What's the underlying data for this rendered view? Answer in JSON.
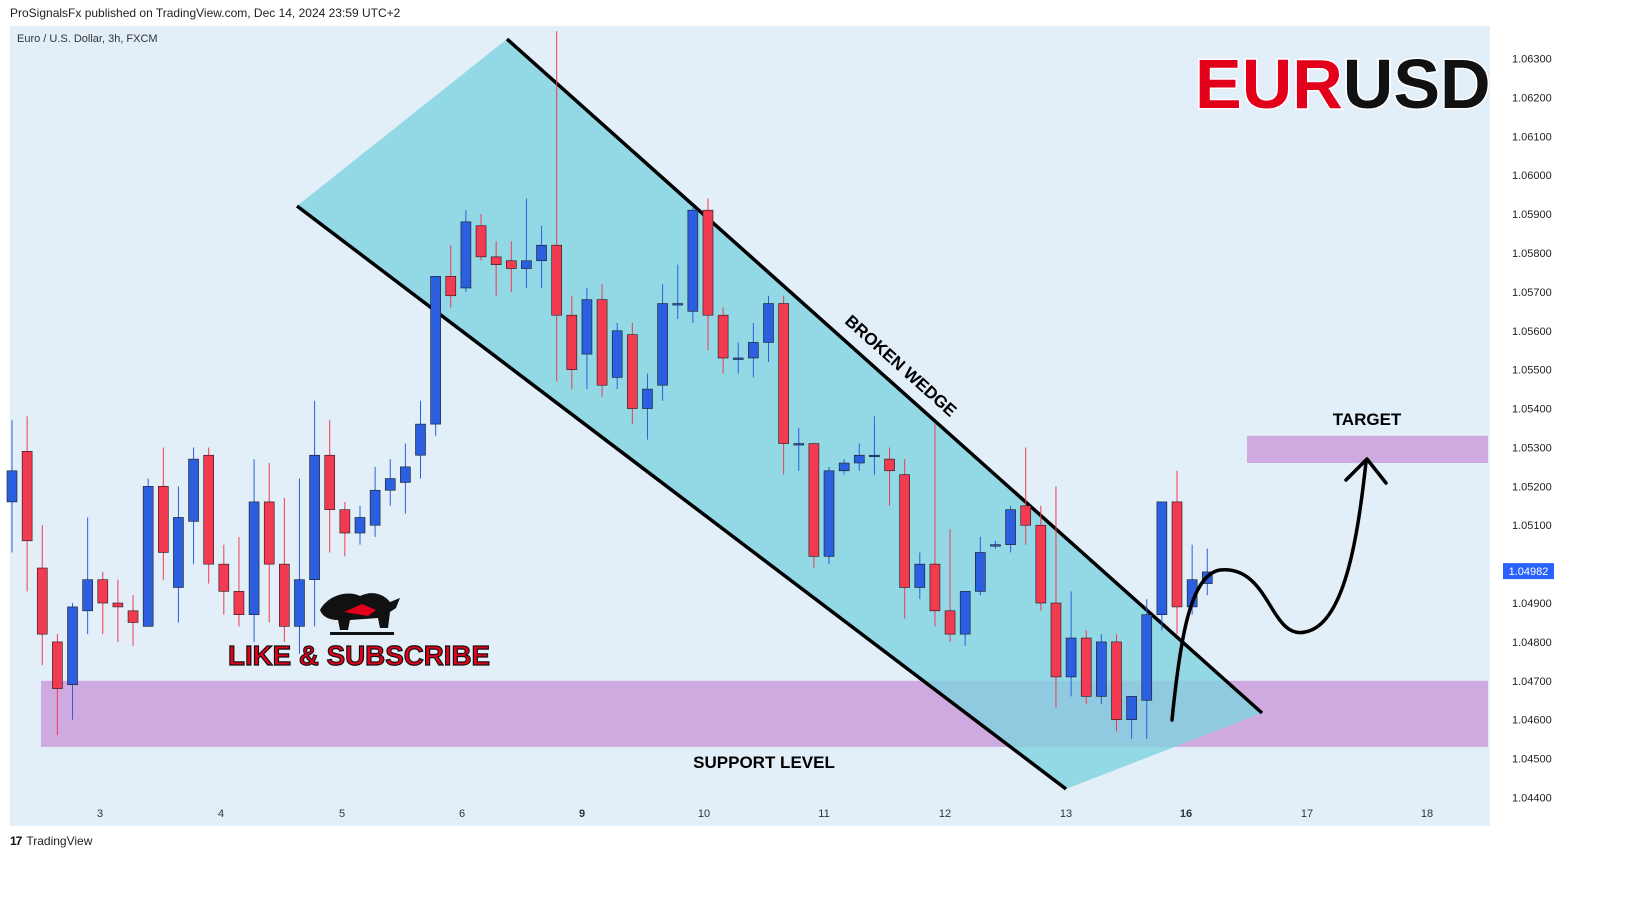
{
  "header": {
    "published_text": "ProSignalsFx published on TradingView.com, Dec 14, 2024 23:59 UTC+2",
    "symbol_line": "Euro / U.S. Dollar, 3h, FXCM"
  },
  "footer": {
    "brand": "TradingView",
    "logo_glyph": "17"
  },
  "colors": {
    "bull": "#2b5fe0",
    "bear": "#f23a50",
    "channel": "#7fd2e0",
    "zone": "#cfaae0",
    "price_tag": "#2962ff",
    "title_red": "#e3001b",
    "title_black": "#111111"
  },
  "chart_data": {
    "type": "candlestick",
    "instrument": "Euro / U.S. Dollar",
    "timeframe": "3h",
    "source": "FXCM",
    "title_left": "EUR",
    "title_right": "USD",
    "x_tick_labels": [
      "3",
      "4",
      "5",
      "6",
      "9",
      "10",
      "11",
      "12",
      "13",
      "16",
      "17",
      "18"
    ],
    "y_ticks": [
      1.063,
      1.062,
      1.061,
      1.06,
      1.059,
      1.058,
      1.057,
      1.056,
      1.055,
      1.054,
      1.053,
      1.052,
      1.051,
      1.049,
      1.048,
      1.047,
      1.046,
      1.045,
      1.044
    ],
    "y_tick_labels": [
      "1.06300",
      "1.06200",
      "1.06100",
      "1.06000",
      "1.05900",
      "1.05800",
      "1.05700",
      "1.05600",
      "1.05500",
      "1.05400",
      "1.05300",
      "1.05200",
      "1.05100",
      "1.04900",
      "1.04800",
      "1.04700",
      "1.04600",
      "1.04500",
      "1.04400"
    ],
    "ylim": [
      1.0436,
      1.0639
    ],
    "last_price": "1.04982",
    "candles": [
      [
        1.0516,
        1.0537,
        1.0524,
        1.0503
      ],
      [
        1.0529,
        1.0538,
        1.0506,
        1.0493
      ],
      [
        1.0499,
        1.051,
        1.0482,
        1.0474
      ],
      [
        1.048,
        1.0482,
        1.0468,
        1.0456
      ],
      [
        1.0469,
        1.049,
        1.0489,
        1.046
      ],
      [
        1.0488,
        1.0512,
        1.0496,
        1.0482
      ],
      [
        1.0496,
        1.0498,
        1.049,
        1.0482
      ],
      [
        1.049,
        1.0496,
        1.0489,
        1.048
      ],
      [
        1.0488,
        1.0492,
        1.0485,
        1.0479
      ],
      [
        1.0484,
        1.0522,
        1.052,
        1.0484
      ],
      [
        1.052,
        1.053,
        1.0503,
        1.0496
      ],
      [
        1.0494,
        1.052,
        1.0512,
        1.0485
      ],
      [
        1.0511,
        1.053,
        1.0527,
        1.05
      ],
      [
        1.0528,
        1.053,
        1.05,
        1.0495
      ],
      [
        1.05,
        1.0505,
        1.0493,
        1.0487
      ],
      [
        1.0493,
        1.0507,
        1.0487,
        1.0484
      ],
      [
        1.0487,
        1.0527,
        1.0516,
        1.048
      ],
      [
        1.0516,
        1.0526,
        1.05,
        1.0485
      ],
      [
        1.05,
        1.0517,
        1.0484,
        1.048
      ],
      [
        1.0484,
        1.0522,
        1.0496,
        1.0477
      ],
      [
        1.0496,
        1.0542,
        1.0528,
        1.0484
      ],
      [
        1.0528,
        1.0537,
        1.0514,
        1.0503
      ],
      [
        1.0514,
        1.0516,
        1.0508,
        1.0502
      ],
      [
        1.0508,
        1.0515,
        1.0512,
        1.0505
      ],
      [
        1.051,
        1.0525,
        1.0519,
        1.0507
      ],
      [
        1.0519,
        1.0527,
        1.0522,
        1.0515
      ],
      [
        1.0521,
        1.0531,
        1.0525,
        1.0513
      ],
      [
        1.0528,
        1.0542,
        1.0536,
        1.0522
      ],
      [
        1.0536,
        1.0539,
        1.0574,
        1.0533
      ],
      [
        1.0574,
        1.0582,
        1.0569,
        1.0566
      ],
      [
        1.0571,
        1.0591,
        1.0588,
        1.057
      ],
      [
        1.0587,
        1.059,
        1.0579,
        1.0578
      ],
      [
        1.0579,
        1.0583,
        1.0577,
        1.0569
      ],
      [
        1.0578,
        1.0583,
        1.0576,
        1.057
      ],
      [
        1.0576,
        1.0594,
        1.0578,
        1.0571
      ],
      [
        1.0578,
        1.0587,
        1.0582,
        1.0571
      ],
      [
        1.0582,
        1.0637,
        1.0564,
        1.0547
      ],
      [
        1.0564,
        1.0569,
        1.055,
        1.0545
      ],
      [
        1.0554,
        1.0571,
        1.0568,
        1.0545
      ],
      [
        1.0568,
        1.0572,
        1.0546,
        1.0543
      ],
      [
        1.0548,
        1.0562,
        1.056,
        1.0545
      ],
      [
        1.0559,
        1.0562,
        1.054,
        1.0536
      ],
      [
        1.054,
        1.0549,
        1.0545,
        1.0532
      ],
      [
        1.0546,
        1.0572,
        1.0567,
        1.0542
      ],
      [
        1.0567,
        1.0577,
        1.0567,
        1.0563
      ],
      [
        1.0565,
        1.0592,
        1.0591,
        1.0562
      ],
      [
        1.0591,
        1.0594,
        1.0564,
        1.0555
      ],
      [
        1.0564,
        1.0566,
        1.0553,
        1.0549
      ],
      [
        1.0553,
        1.0557,
        1.0553,
        1.0549
      ],
      [
        1.0553,
        1.0562,
        1.0557,
        1.0548
      ],
      [
        1.0557,
        1.0569,
        1.0567,
        1.0552
      ],
      [
        1.0567,
        1.0569,
        1.0531,
        1.0523
      ],
      [
        1.0531,
        1.0535,
        1.0531,
        1.0524
      ],
      [
        1.0531,
        1.0531,
        1.0502,
        1.0499
      ],
      [
        1.0502,
        1.0525,
        1.0524,
        1.05
      ],
      [
        1.0524,
        1.0527,
        1.0526,
        1.0523
      ],
      [
        1.0526,
        1.0531,
        1.0528,
        1.0524
      ],
      [
        1.0528,
        1.0538,
        1.0528,
        1.0523
      ],
      [
        1.0527,
        1.053,
        1.0524,
        1.0515
      ],
      [
        1.0523,
        1.0527,
        1.0494,
        1.0486
      ],
      [
        1.0494,
        1.0503,
        1.05,
        1.0491
      ],
      [
        1.05,
        1.0536,
        1.0488,
        1.0484
      ],
      [
        1.0488,
        1.0509,
        1.0482,
        1.048
      ],
      [
        1.0482,
        1.0493,
        1.0493,
        1.0479
      ],
      [
        1.0493,
        1.0507,
        1.0503,
        1.0492
      ],
      [
        1.0505,
        1.0506,
        1.0505,
        1.0504
      ],
      [
        1.0505,
        1.0515,
        1.0514,
        1.0503
      ],
      [
        1.0515,
        1.053,
        1.051,
        1.0505
      ],
      [
        1.051,
        1.0515,
        1.049,
        1.0488
      ],
      [
        1.049,
        1.052,
        1.0471,
        1.0463
      ],
      [
        1.0471,
        1.0493,
        1.0481,
        1.0466
      ],
      [
        1.0481,
        1.0483,
        1.0466,
        1.0464
      ],
      [
        1.0466,
        1.0482,
        1.048,
        1.0464
      ],
      [
        1.048,
        1.0482,
        1.046,
        1.0457
      ],
      [
        1.046,
        1.0466,
        1.0466,
        1.0455
      ],
      [
        1.0465,
        1.0491,
        1.0487,
        1.0455
      ],
      [
        1.0487,
        1.0515,
        1.0516,
        1.0483
      ],
      [
        1.0516,
        1.0524,
        1.0489,
        1.0482
      ],
      [
        1.0489,
        1.0505,
        1.0496,
        1.0487
      ],
      [
        1.0495,
        1.0504,
        1.0498,
        1.0492
      ]
    ],
    "annotations": {
      "channel_label": "BROKEN WEDGE",
      "target_label": "TARGET",
      "support_label": "SUPPORT LEVEL",
      "promo_label": "LIKE & SUBSCRIBE",
      "support_zone": [
        1.0453,
        1.047
      ],
      "target_zone": [
        1.0526,
        1.0533
      ]
    }
  }
}
